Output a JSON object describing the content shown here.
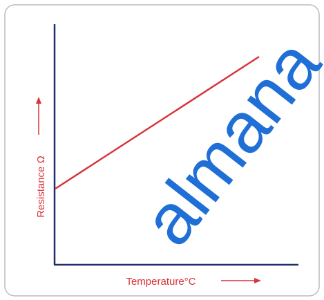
{
  "axes": {
    "x_label": "Temperature°C",
    "y_label": "Resistance Ω"
  },
  "watermark": "almana"
}
